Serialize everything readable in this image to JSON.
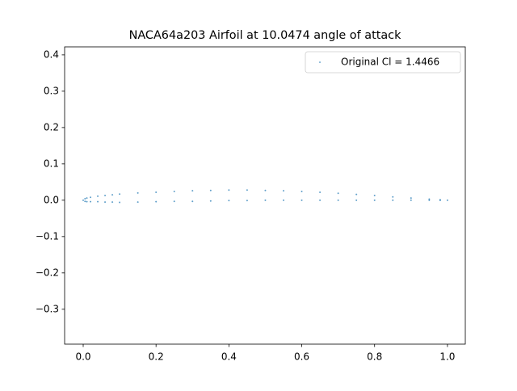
{
  "chart_data": {
    "type": "scatter",
    "title": "NACA64a203 Airfoil at 10.0474 angle of attack",
    "series": [
      {
        "name": "Original Cl = 1.4466",
        "color": "#1f77b4",
        "x": [
          0,
          0.005,
          0.01,
          0.02,
          0.04,
          0.06,
          0.08,
          0.1,
          0.15,
          0.2,
          0.25,
          0.3,
          0.35,
          0.4,
          0.45,
          0.5,
          0.55,
          0.6,
          0.65,
          0.7,
          0.75,
          0.8,
          0.85,
          0.9,
          0.95,
          0.98,
          1.0,
          0.005,
          0.01,
          0.02,
          0.04,
          0.06,
          0.08,
          0.1,
          0.15,
          0.2,
          0.25,
          0.3,
          0.35,
          0.4,
          0.45,
          0.5,
          0.55,
          0.6,
          0.65,
          0.7,
          0.75,
          0.8,
          0.85,
          0.9,
          0.95,
          0.98
        ],
        "values": [
          0,
          0.004,
          0.006,
          0.008,
          0.011,
          0.013,
          0.015,
          0.017,
          0.02,
          0.022,
          0.024,
          0.026,
          0.027,
          0.028,
          0.028,
          0.027,
          0.026,
          0.024,
          0.022,
          0.019,
          0.016,
          0.013,
          0.009,
          0.006,
          0.003,
          0.001,
          0,
          -0.003,
          -0.004,
          -0.004,
          -0.004,
          -0.005,
          -0.005,
          -0.006,
          -0.005,
          -0.004,
          -0.003,
          -0.003,
          -0.002,
          -0.001,
          -0.001,
          0,
          0,
          0,
          0,
          0,
          0,
          0,
          0,
          0,
          0,
          0
        ]
      }
    ],
    "xlim": [
      -0.051,
      1.049
    ],
    "ylim": [
      -0.396,
      0.422
    ],
    "xticks": [
      {
        "value": 0,
        "label": "0.0"
      },
      0.2,
      0.4,
      0.6,
      0.8,
      {
        "value": 1,
        "label": "1.0"
      }
    ],
    "yticks": [
      {
        "value": -0.3,
        "label": "−0.3"
      },
      {
        "value": -0.2,
        "label": "−0.2"
      },
      {
        "value": -0.1,
        "label": "−0.1"
      },
      {
        "value": 0,
        "label": "0.0"
      },
      0.1,
      0.2,
      0.3,
      0.4
    ],
    "legend": "upper right",
    "grid": false
  }
}
